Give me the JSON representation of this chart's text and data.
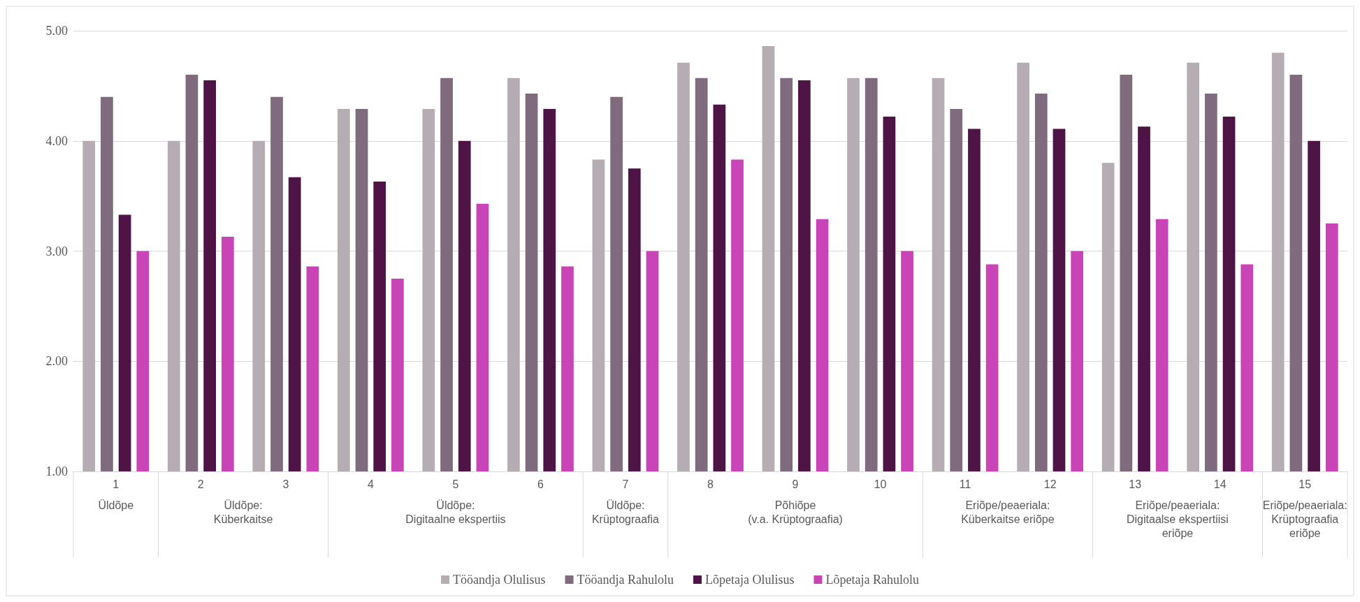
{
  "chart_data": {
    "type": "bar",
    "categories": [
      "1",
      "2",
      "3",
      "4",
      "5",
      "6",
      "7",
      "8",
      "9",
      "10",
      "11",
      "12",
      "13",
      "14",
      "15"
    ],
    "series": [
      {
        "name": "Tööandja Olulisus",
        "color": "#b5acb4",
        "values": [
          4.0,
          4.0,
          4.0,
          4.29,
          4.29,
          4.57,
          3.83,
          4.71,
          4.86,
          4.57,
          4.57,
          4.71,
          3.8,
          4.71,
          4.8
        ]
      },
      {
        "name": "Tööandja Rahulolu",
        "color": "#7f6a7e",
        "values": [
          4.4,
          4.6,
          4.4,
          4.29,
          4.57,
          4.43,
          4.4,
          4.57,
          4.57,
          4.57,
          4.29,
          4.43,
          4.6,
          4.43,
          4.6
        ]
      },
      {
        "name": "Lõpetaja Olulisus",
        "color": "#4e1446",
        "values": [
          3.33,
          4.55,
          3.67,
          3.63,
          4.0,
          4.29,
          3.75,
          4.33,
          4.55,
          4.22,
          4.11,
          4.11,
          4.13,
          4.22,
          4.0
        ]
      },
      {
        "name": "Lõpetaja Rahulolu",
        "color": "#c944b6",
        "values": [
          3.0,
          3.13,
          2.86,
          2.75,
          3.43,
          2.86,
          3.0,
          3.83,
          3.29,
          3.0,
          2.88,
          3.0,
          3.29,
          2.88,
          3.25
        ]
      }
    ],
    "annotations": [
      "Üldõpe",
      "Üldõpe:\nKüberkaitse",
      "Üldõpe:\nDigitaalne ekspertiis",
      "Üldõpe:\nKrüptograafia",
      "Põhiõpe\n(v.a. Krüptograafia)",
      "Eriõpe/peaeriala:\nKüberkaitse eriõpe",
      "Eriõpe/peaeriala:\nDigitaalse ekspertiisi\neriõpe",
      "Eriõpe/peaeriala:\nKrüptograafia\neriõpe"
    ],
    "ylim": [
      1,
      5
    ],
    "yticks": [
      {
        "value": 1,
        "label": "1.00"
      },
      {
        "value": 2,
        "label": "2.00"
      },
      {
        "value": 3,
        "label": "3.00"
      },
      {
        "value": 4,
        "label": "4.00"
      },
      {
        "value": 5,
        "label": "5.00"
      }
    ],
    "grid": "y",
    "legend": "bottom"
  }
}
